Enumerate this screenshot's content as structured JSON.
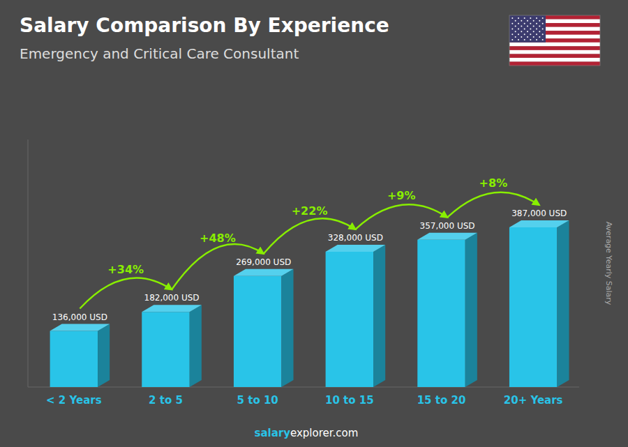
{
  "chart_data": {
    "type": "bar",
    "title": "Salary Comparison By Experience",
    "subtitle": "Emergency and Critical Care Consultant",
    "ylabel": "Average Yearly Salary",
    "categories": [
      "< 2 Years",
      "2 to 5",
      "5 to 10",
      "10 to 15",
      "15 to 20",
      "20+ Years"
    ],
    "values": [
      136000,
      182000,
      269000,
      328000,
      357000,
      387000
    ],
    "value_labels": [
      "136,000 USD",
      "182,000 USD",
      "269,000 USD",
      "328,000 USD",
      "357,000 USD",
      "387,000 USD"
    ],
    "data_labels": true,
    "annotations": [
      "+34%",
      "+48%",
      "+22%",
      "+9%",
      "+8%"
    ],
    "footer": [
      "salary",
      "explorer.com"
    ],
    "color": "#29C4E8",
    "ylim": [
      0,
      599850
    ],
    "tick_labels": "x",
    "grid": false
  }
}
